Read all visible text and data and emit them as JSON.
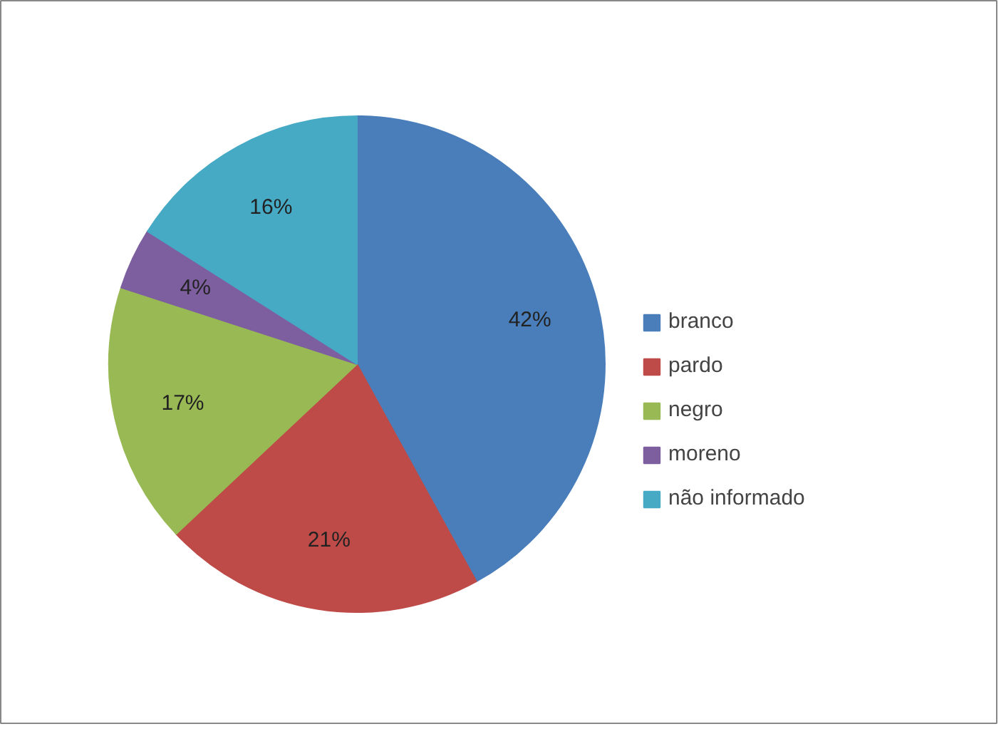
{
  "chart_data": {
    "type": "pie",
    "categories": [
      "branco",
      "pardo",
      "negro",
      "moreno",
      "não informado"
    ],
    "values": [
      42,
      21,
      17,
      4,
      16
    ],
    "colors": [
      "#4a7ebb",
      "#be4b48",
      "#98b954",
      "#7d5fa0",
      "#46aac5"
    ],
    "value_labels": [
      "42%",
      "21%",
      "17%",
      "4%",
      "16%"
    ],
    "legend": "right"
  }
}
